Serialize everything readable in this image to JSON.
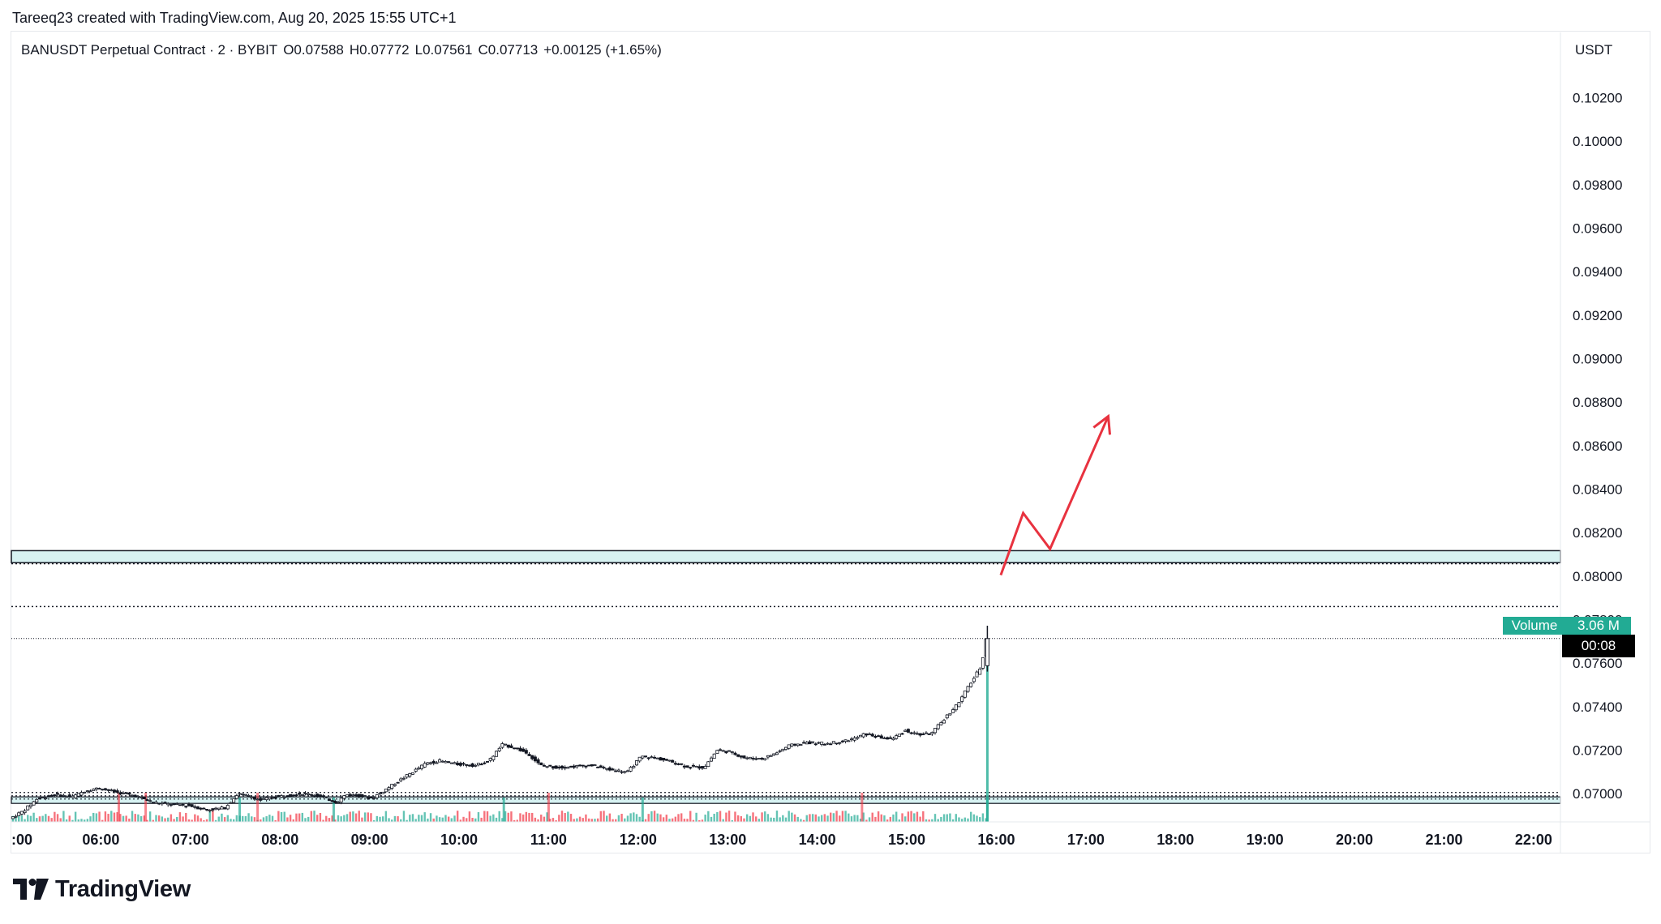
{
  "header": {
    "credit": "Tareeq23 created with TradingView.com, Aug 20, 2025 15:55 UTC+1"
  },
  "legend": {
    "symbol": "BANUSDT Perpetual Contract · 2 · BYBIT",
    "open": "O0.07588",
    "high": "H0.07772",
    "low": "L0.07561",
    "close": "C0.07713",
    "change": "+0.00125 (+1.65%)"
  },
  "price_axis": {
    "currency": "USDT"
  },
  "overlay": {
    "volume_label": "Volume",
    "volume_value": "3.06 M",
    "countdown": "00:08"
  },
  "brand": {
    "name": "TradingView"
  },
  "colors": {
    "up": "#22ab94",
    "down": "#f23645",
    "candle_body": "#131722",
    "zone_fill": "#d7f2f2",
    "arrow": "#e8323f",
    "grid_text": "#131722"
  },
  "chart_data": {
    "type": "candlestick",
    "symbol": "BANUSDT",
    "exchange": "BYBIT",
    "interval": "2",
    "ylim": [
      0.0687,
      0.105
    ],
    "yticks": [
      "0.10200",
      "0.10000",
      "0.09800",
      "0.09600",
      "0.09400",
      "0.09200",
      "0.09000",
      "0.08800",
      "0.08600",
      "0.08400",
      "0.08200",
      "0.08000",
      "0.07800",
      "0.07600",
      "0.07400",
      "0.07200",
      "0.07000"
    ],
    "xlim": [
      5.0,
      22.3
    ],
    "xticks": [
      ":00",
      "06:00",
      "07:00",
      "08:00",
      "09:00",
      "10:00",
      "11:00",
      "12:00",
      "13:00",
      "14:00",
      "15:00",
      "16:00",
      "17:00",
      "18:00",
      "19:00",
      "20:00",
      "21:00",
      "22:00"
    ],
    "last_price": 0.07713,
    "price_path": [
      [
        5.0,
        0.06885
      ],
      [
        5.15,
        0.0692
      ],
      [
        5.3,
        0.06975
      ],
      [
        5.5,
        0.06995
      ],
      [
        5.7,
        0.06985
      ],
      [
        5.85,
        0.07015
      ],
      [
        6.0,
        0.07025
      ],
      [
        6.2,
        0.07005
      ],
      [
        6.4,
        0.0699
      ],
      [
        6.6,
        0.0696
      ],
      [
        6.8,
        0.0695
      ],
      [
        7.0,
        0.06945
      ],
      [
        7.2,
        0.06925
      ],
      [
        7.4,
        0.06935
      ],
      [
        7.55,
        0.07
      ],
      [
        7.7,
        0.06985
      ],
      [
        7.8,
        0.0697
      ],
      [
        7.95,
        0.06985
      ],
      [
        8.1,
        0.0699
      ],
      [
        8.25,
        0.07
      ],
      [
        8.4,
        0.06995
      ],
      [
        8.55,
        0.06975
      ],
      [
        8.65,
        0.0696
      ],
      [
        8.75,
        0.06995
      ],
      [
        8.9,
        0.0699
      ],
      [
        9.05,
        0.0698
      ],
      [
        9.2,
        0.0702
      ],
      [
        9.35,
        0.0706
      ],
      [
        9.5,
        0.071
      ],
      [
        9.65,
        0.0714
      ],
      [
        9.8,
        0.0715
      ],
      [
        10.0,
        0.07135
      ],
      [
        10.2,
        0.0713
      ],
      [
        10.35,
        0.0715
      ],
      [
        10.5,
        0.07225
      ],
      [
        10.65,
        0.0721
      ],
      [
        10.8,
        0.0718
      ],
      [
        10.92,
        0.0713
      ],
      [
        11.1,
        0.0712
      ],
      [
        11.3,
        0.07125
      ],
      [
        11.5,
        0.0713
      ],
      [
        11.7,
        0.0711
      ],
      [
        11.9,
        0.071
      ],
      [
        12.05,
        0.0717
      ],
      [
        12.2,
        0.07165
      ],
      [
        12.4,
        0.07145
      ],
      [
        12.55,
        0.07125
      ],
      [
        12.75,
        0.0712
      ],
      [
        12.9,
        0.072
      ],
      [
        13.05,
        0.0719
      ],
      [
        13.2,
        0.07165
      ],
      [
        13.4,
        0.0716
      ],
      [
        13.55,
        0.07185
      ],
      [
        13.7,
        0.0722
      ],
      [
        13.9,
        0.07235
      ],
      [
        14.1,
        0.0723
      ],
      [
        14.3,
        0.0724
      ],
      [
        14.45,
        0.07255
      ],
      [
        14.55,
        0.07275
      ],
      [
        14.7,
        0.0726
      ],
      [
        14.85,
        0.0725
      ],
      [
        15.0,
        0.0729
      ],
      [
        15.15,
        0.0727
      ],
      [
        15.3,
        0.0728
      ],
      [
        15.45,
        0.0735
      ],
      [
        15.6,
        0.0742
      ],
      [
        15.7,
        0.0749
      ],
      [
        15.78,
        0.0754
      ],
      [
        15.85,
        0.07588
      ],
      [
        15.9,
        0.07713
      ]
    ],
    "volume_spikes_down": [
      6.2,
      6.5,
      7.75,
      11.0,
      14.5
    ],
    "volume_spikes_up": [
      7.55,
      8.6,
      10.5,
      12.05,
      15.9
    ],
    "levels": {
      "resistance_zone": [
        0.08062,
        0.08117
      ],
      "resistance_dotted_lower": 0.08057,
      "dotted_level": 0.0786,
      "last_price_line": 0.07713,
      "support_zone": [
        0.06955,
        0.06985
      ],
      "support_dotted": [
        0.07005,
        0.0699,
        0.06975
      ]
    },
    "projection_arrow": [
      [
        16.05,
        0.08005
      ],
      [
        16.3,
        0.0829
      ],
      [
        16.6,
        0.08125
      ],
      [
        17.25,
        0.08735
      ]
    ]
  }
}
